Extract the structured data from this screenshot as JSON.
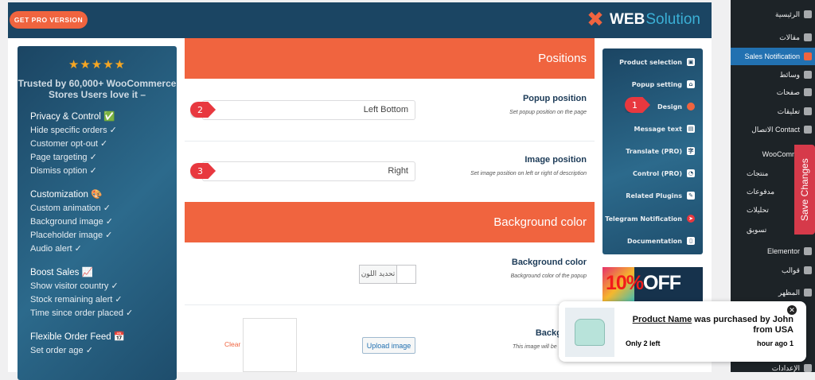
{
  "header": {
    "pro_button": "GET PRO VERSION",
    "logo_web": "WEB",
    "logo_solution": "Solution"
  },
  "promo": {
    "stars": "★★★★★",
    "trusted": "Trusted by 60,000+ WooCommerce Stores Users love it –",
    "groups": [
      {
        "title": "Privacy & Control ✅",
        "items": [
          "Hide specific orders ✓",
          "Customer opt-out ✓",
          "Page targeting ✓",
          "Dismiss option ✓"
        ]
      },
      {
        "title": "Customization 🎨",
        "items": [
          "Custom animation ✓",
          "Background image ✓",
          "Placeholder image ✓",
          "Audio alert ✓"
        ]
      },
      {
        "title": "Boost Sales 📈",
        "items": [
          "Show visitor country ✓",
          "Stock remaining alert ✓",
          "Time since order placed ✓"
        ]
      },
      {
        "title": "Flexible Order Feed 📅",
        "items": [
          "Set order age ✓"
        ]
      }
    ]
  },
  "sections": {
    "positions": "Positions",
    "popup_position": {
      "label": "Popup position",
      "desc": "Set popup position on the page",
      "value": "Left Bottom"
    },
    "image_position": {
      "label": "Image position",
      "desc": "Set image position on left or right of description",
      "value": "Right"
    },
    "background_color_header": "Background color",
    "background_color": {
      "label": "Background color",
      "desc": "Background color of the popup",
      "button": "تحديد اللون"
    },
    "background_image": {
      "label": "Background",
      "desc": "This image will be used inside",
      "upload": "Upload image",
      "clear": "Clear"
    }
  },
  "badges": [
    "1",
    "2",
    "3"
  ],
  "nav": [
    "Product selection",
    "Popup setting",
    "Design",
    "Message text",
    "Translate (PRO)",
    "Control (PRO)",
    "Related Plugins",
    "Telegram Notification",
    "Documentation"
  ],
  "ad": {
    "pct": "10%",
    "off": "OFF"
  },
  "wp_menu": [
    "الرئيسية",
    "مقالات",
    "Sales Notification",
    "وسائط",
    "صفحات",
    "تعليقات",
    "الاتصال Contact",
    "WooCommerce",
    "منتجات",
    "مدفوعات",
    "تحليلات",
    "تسويق",
    "Elementor",
    "قوالب",
    "المظهر",
    "الإعدادات"
  ],
  "save": "Save Changes",
  "popup": {
    "product": "Product Name",
    "message": " was purchased by John from USA",
    "stock": "Only 2 left",
    "time": "hour ago 1"
  },
  "colors": {
    "accent": "#f0643f",
    "header": "#1b4563",
    "wp_active": "#2271b1",
    "save": "#d63a4a"
  }
}
